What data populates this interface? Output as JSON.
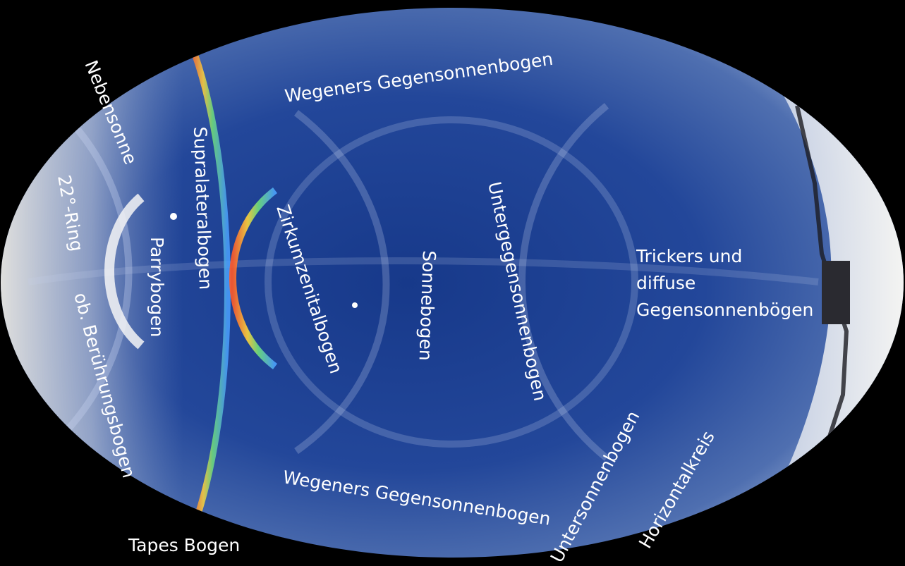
{
  "labels": {
    "nebensonne": "Nebensonne",
    "ring22": "22°-Ring",
    "beruehrungsbogen": "ob. Berührungsbogen",
    "parrybogen": "Parrybogen",
    "supralateralbogen": "Supralateralbogen",
    "zirkumzenitalbogen": "Zirkumzenitalbogen",
    "sonnebogen": "Sonnebogen",
    "untergegensonnenbogen": "Untergegensonnenbogen",
    "wegener_top": "Wegeners Gegensonnenbogen",
    "wegener_bottom": "Wegeners Gegensonnenbogen",
    "trickers_line1": "Trickers und",
    "trickers_line2": "diffuse",
    "trickers_line3": "Gegensonnenbögen",
    "tapes": "Tapes Bogen",
    "untersonnenbogen": "Untersonnenbogen",
    "horizontalkreis": "Horizontalkreis"
  },
  "colors": {
    "sky_center": "#1a3f8f",
    "sky_edge": "#5a7ab8",
    "frame": "#000000",
    "label": "#ffffff"
  }
}
